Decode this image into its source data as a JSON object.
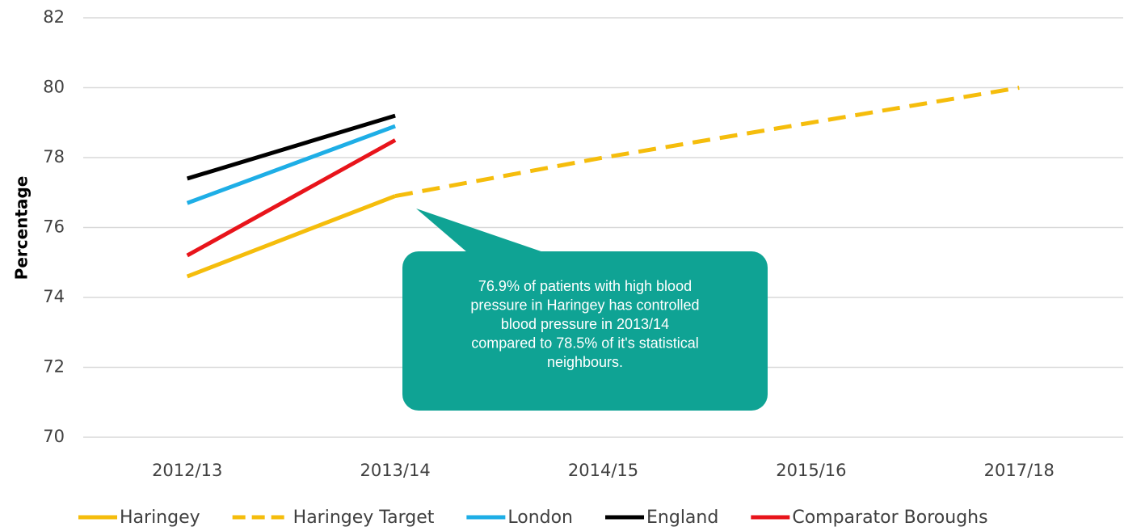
{
  "chart_data": {
    "type": "line",
    "y_label": "Percentage",
    "categories": [
      "2012/13",
      "2013/14",
      "2014/15",
      "2015/16",
      "2017/18"
    ],
    "series": [
      {
        "name": "Haringey",
        "color": "#f5bd0c",
        "dashed": false,
        "values": [
          74.6,
          76.9,
          null,
          null,
          null
        ]
      },
      {
        "name": "Haringey Target",
        "color": "#f5bd0c",
        "dashed": true,
        "values": [
          null,
          76.9,
          78,
          79,
          80
        ]
      },
      {
        "name": "London",
        "color": "#1eaee6",
        "dashed": false,
        "values": [
          76.7,
          78.9,
          null,
          null,
          null
        ]
      },
      {
        "name": "England",
        "color": "#000000",
        "dashed": false,
        "values": [
          77.4,
          79.2,
          null,
          null,
          null
        ]
      },
      {
        "name": "Comparator Boroughs",
        "color": "#e8141b",
        "dashed": false,
        "values": [
          75.2,
          78.5,
          null,
          null,
          null
        ]
      }
    ],
    "ylim": [
      70,
      82
    ],
    "yticks": [
      70,
      72,
      74,
      76,
      78,
      80,
      82
    ],
    "grid": true,
    "legend": "bottom",
    "annotation": {
      "color": "#0fa394",
      "lines": [
        "76.9% of patients with high blood",
        "pressure in Haringey has controlled",
        "blood pressure in 2013/14",
        "compared to 78.5% of it's statistical",
        "neighbours."
      ]
    }
  }
}
